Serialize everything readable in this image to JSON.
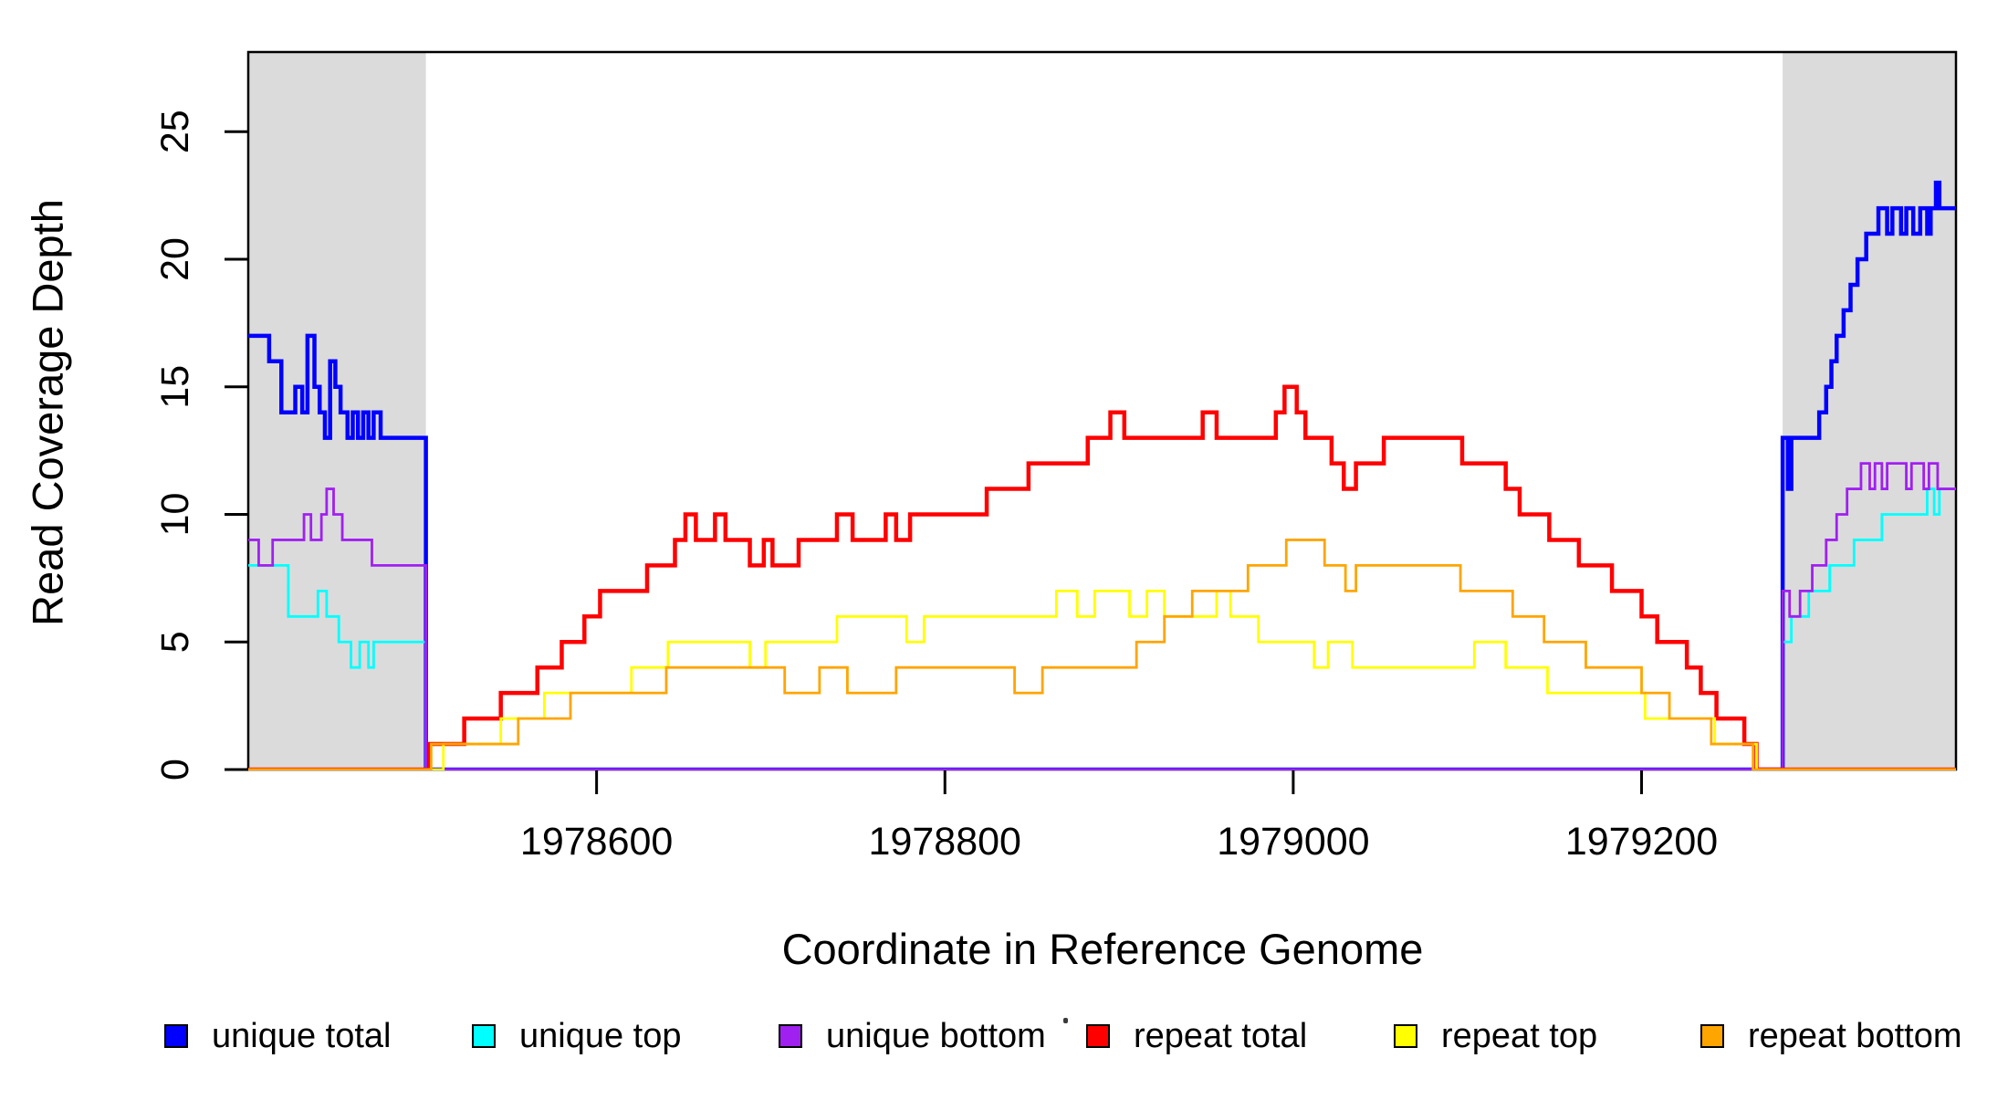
{
  "figure": {
    "x_axis_title": "Coordinate in Reference Genome",
    "y_axis_title": "Read Coverage Depth"
  },
  "legend": {
    "entries": [
      {
        "name": "unique-total",
        "label": "unique total",
        "color": "#0000FF"
      },
      {
        "name": "unique-top",
        "label": "unique top",
        "color": "#00FFFF"
      },
      {
        "name": "unique-bottom",
        "label": "unique bottom",
        "color": "#A020F0"
      },
      {
        "name": "repeat-total",
        "label": "repeat total",
        "color": "#FF0000"
      },
      {
        "name": "repeat-top",
        "label": "repeat top",
        "color": "#FFFF00"
      },
      {
        "name": "repeat-bottom",
        "label": "repeat bottom",
        "color": "#FFA500"
      }
    ]
  },
  "chart_data": {
    "type": "line",
    "style": "step-after",
    "xlabel": "Coordinate in Reference Genome",
    "ylabel": "Read Coverage Depth",
    "x_range": [
      1978400,
      1979380
    ],
    "y_range": [
      0,
      28
    ],
    "x_ticks": [
      1978600,
      1978800,
      1979000,
      1979200
    ],
    "y_ticks": [
      0,
      5,
      10,
      15,
      20,
      25
    ],
    "grid": false,
    "legend_position": "bottom",
    "shaded_regions": [
      {
        "x0": 1978400,
        "x1": 1978502,
        "color": "#DBDBDB"
      },
      {
        "x0": 1979281,
        "x1": 1979380,
        "color": "#DBDBDB"
      }
    ],
    "series": [
      {
        "name": "unique total",
        "color": "#0000FF",
        "line_width": 4.5,
        "points": [
          [
            1978400,
            17
          ],
          [
            1978412,
            16
          ],
          [
            1978419,
            14
          ],
          [
            1978427,
            15
          ],
          [
            1978431,
            14
          ],
          [
            1978434,
            17
          ],
          [
            1978438,
            15
          ],
          [
            1978441,
            14
          ],
          [
            1978444,
            13
          ],
          [
            1978447,
            16
          ],
          [
            1978450,
            15
          ],
          [
            1978453,
            14
          ],
          [
            1978457,
            13
          ],
          [
            1978460,
            14
          ],
          [
            1978463,
            13
          ],
          [
            1978466,
            14
          ],
          [
            1978469,
            13
          ],
          [
            1978472,
            14
          ],
          [
            1978476,
            13
          ],
          [
            1978502,
            0
          ],
          [
            1979281,
            13
          ],
          [
            1979284,
            11
          ],
          [
            1979286,
            13
          ],
          [
            1979302,
            14
          ],
          [
            1979306,
            15
          ],
          [
            1979309,
            16
          ],
          [
            1979312,
            17
          ],
          [
            1979316,
            18
          ],
          [
            1979320,
            19
          ],
          [
            1979324,
            20
          ],
          [
            1979329,
            21
          ],
          [
            1979336,
            22
          ],
          [
            1979341,
            21
          ],
          [
            1979344,
            22
          ],
          [
            1979349,
            21
          ],
          [
            1979352,
            22
          ],
          [
            1979356,
            21
          ],
          [
            1979360,
            22
          ],
          [
            1979364,
            21
          ],
          [
            1979366,
            22
          ],
          [
            1979369,
            23
          ],
          [
            1979371,
            22
          ]
        ]
      },
      {
        "name": "unique top",
        "color": "#00FFFF",
        "line_width": 2.8,
        "points": [
          [
            1978400,
            8
          ],
          [
            1978423,
            6
          ],
          [
            1978440,
            7
          ],
          [
            1978445,
            6
          ],
          [
            1978452,
            5
          ],
          [
            1978459,
            4
          ],
          [
            1978464,
            5
          ],
          [
            1978469,
            4
          ],
          [
            1978472,
            5
          ],
          [
            1978502,
            0
          ],
          [
            1979281,
            5
          ],
          [
            1979286,
            6
          ],
          [
            1979296,
            7
          ],
          [
            1979308,
            8
          ],
          [
            1979322,
            9
          ],
          [
            1979338,
            10
          ],
          [
            1979364,
            11
          ],
          [
            1979368,
            10
          ],
          [
            1979371,
            11
          ]
        ]
      },
      {
        "name": "unique bottom",
        "color": "#A020F0",
        "line_width": 2.8,
        "points": [
          [
            1978400,
            9
          ],
          [
            1978406,
            8
          ],
          [
            1978414,
            9
          ],
          [
            1978432,
            10
          ],
          [
            1978436,
            9
          ],
          [
            1978442,
            10
          ],
          [
            1978445,
            11
          ],
          [
            1978449,
            10
          ],
          [
            1978454,
            9
          ],
          [
            1978471,
            8
          ],
          [
            1978502,
            0
          ],
          [
            1979281,
            7
          ],
          [
            1979285,
            6
          ],
          [
            1979291,
            7
          ],
          [
            1979298,
            8
          ],
          [
            1979306,
            9
          ],
          [
            1979312,
            10
          ],
          [
            1979318,
            11
          ],
          [
            1979326,
            12
          ],
          [
            1979331,
            11
          ],
          [
            1979334,
            12
          ],
          [
            1979338,
            11
          ],
          [
            1979341,
            12
          ],
          [
            1979352,
            11
          ],
          [
            1979355,
            12
          ],
          [
            1979362,
            11
          ],
          [
            1979365,
            12
          ],
          [
            1979370,
            11
          ]
        ]
      },
      {
        "name": "repeat total",
        "color": "#FF0000",
        "line_width": 4.5,
        "points": [
          [
            1978400,
            0
          ],
          [
            1978504,
            1
          ],
          [
            1978524,
            2
          ],
          [
            1978545,
            3
          ],
          [
            1978566,
            4
          ],
          [
            1978580,
            5
          ],
          [
            1978593,
            6
          ],
          [
            1978602,
            7
          ],
          [
            1978629,
            8
          ],
          [
            1978645,
            9
          ],
          [
            1978651,
            10
          ],
          [
            1978657,
            9
          ],
          [
            1978668,
            10
          ],
          [
            1978674,
            9
          ],
          [
            1978688,
            8
          ],
          [
            1978696,
            9
          ],
          [
            1978701,
            8
          ],
          [
            1978716,
            9
          ],
          [
            1978738,
            10
          ],
          [
            1978747,
            9
          ],
          [
            1978766,
            10
          ],
          [
            1978772,
            9
          ],
          [
            1978780,
            10
          ],
          [
            1978824,
            11
          ],
          [
            1978848,
            12
          ],
          [
            1978882,
            13
          ],
          [
            1978895,
            14
          ],
          [
            1978903,
            13
          ],
          [
            1978948,
            14
          ],
          [
            1978956,
            13
          ],
          [
            1978990,
            14
          ],
          [
            1978995,
            15
          ],
          [
            1979002,
            14
          ],
          [
            1979007,
            13
          ],
          [
            1979022,
            12
          ],
          [
            1979029,
            11
          ],
          [
            1979036,
            12
          ],
          [
            1979052,
            13
          ],
          [
            1979097,
            12
          ],
          [
            1979122,
            11
          ],
          [
            1979130,
            10
          ],
          [
            1979147,
            9
          ],
          [
            1979164,
            8
          ],
          [
            1979183,
            7
          ],
          [
            1979200,
            6
          ],
          [
            1979209,
            5
          ],
          [
            1979226,
            4
          ],
          [
            1979234,
            3
          ],
          [
            1979243,
            2
          ],
          [
            1979259,
            1
          ],
          [
            1979266,
            0
          ]
        ]
      },
      {
        "name": "repeat top",
        "color": "#FFFF00",
        "line_width": 2.8,
        "points": [
          [
            1978400,
            0
          ],
          [
            1978512,
            1
          ],
          [
            1978545,
            2
          ],
          [
            1978570,
            3
          ],
          [
            1978620,
            4
          ],
          [
            1978641,
            5
          ],
          [
            1978688,
            4
          ],
          [
            1978697,
            5
          ],
          [
            1978738,
            6
          ],
          [
            1978778,
            5
          ],
          [
            1978788,
            6
          ],
          [
            1978864,
            7
          ],
          [
            1978876,
            6
          ],
          [
            1978886,
            7
          ],
          [
            1978906,
            6
          ],
          [
            1978916,
            7
          ],
          [
            1978926,
            6
          ],
          [
            1978956,
            7
          ],
          [
            1978964,
            6
          ],
          [
            1978980,
            5
          ],
          [
            1979012,
            4
          ],
          [
            1979020,
            5
          ],
          [
            1979034,
            4
          ],
          [
            1979104,
            5
          ],
          [
            1979122,
            4
          ],
          [
            1979146,
            3
          ],
          [
            1979202,
            2
          ],
          [
            1979242,
            1
          ],
          [
            1979266,
            0
          ]
        ]
      },
      {
        "name": "repeat bottom",
        "color": "#FFA500",
        "line_width": 2.8,
        "points": [
          [
            1978400,
            0
          ],
          [
            1978505,
            1
          ],
          [
            1978555,
            2
          ],
          [
            1978585,
            3
          ],
          [
            1978640,
            4
          ],
          [
            1978708,
            3
          ],
          [
            1978728,
            4
          ],
          [
            1978744,
            3
          ],
          [
            1978772,
            4
          ],
          [
            1978840,
            3
          ],
          [
            1978856,
            4
          ],
          [
            1978910,
            5
          ],
          [
            1978926,
            6
          ],
          [
            1978942,
            7
          ],
          [
            1978974,
            8
          ],
          [
            1978996,
            9
          ],
          [
            1979018,
            8
          ],
          [
            1979030,
            7
          ],
          [
            1979036,
            8
          ],
          [
            1979096,
            7
          ],
          [
            1979126,
            6
          ],
          [
            1979144,
            5
          ],
          [
            1979168,
            4
          ],
          [
            1979200,
            3
          ],
          [
            1979216,
            2
          ],
          [
            1979240,
            1
          ],
          [
            1979264,
            0
          ]
        ]
      }
    ]
  }
}
